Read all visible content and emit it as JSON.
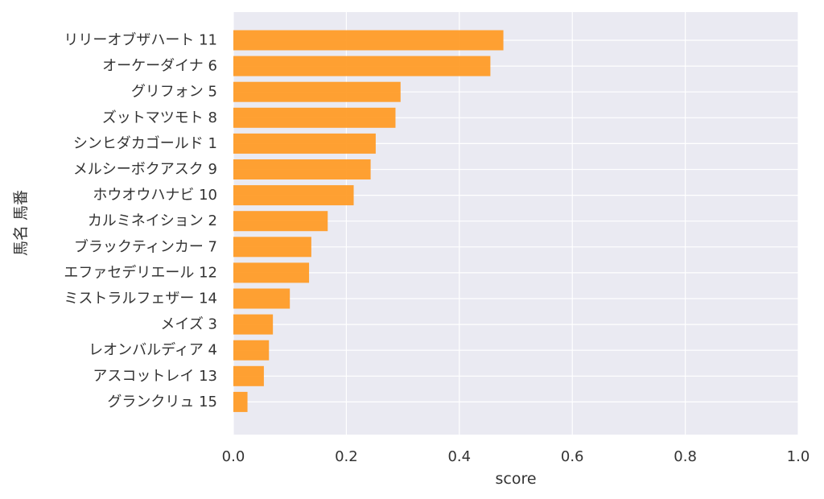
{
  "chart_data": {
    "type": "bar",
    "orientation": "horizontal",
    "categories": [
      "リリーオブザハート 11",
      "オーケーダイナ 6",
      "グリフォン 5",
      "ズットマツモト 8",
      "シンヒダカゴールド 1",
      "メルシーボクアスク 9",
      "ホウオウハナビ 10",
      "カルミネイション 2",
      "ブラックティンカー 7",
      "エファセデリエール 12",
      "ミストラルフェザー 14",
      "メイズ 3",
      "レオンバルディア 4",
      "アスコットレイ 13",
      "グランクリュ 15"
    ],
    "values": [
      0.478,
      0.455,
      0.296,
      0.287,
      0.252,
      0.243,
      0.213,
      0.167,
      0.138,
      0.134,
      0.1,
      0.07,
      0.063,
      0.054,
      0.025
    ],
    "xlabel": "score",
    "ylabel": "馬名 馬番",
    "xlim": [
      0,
      1.0
    ],
    "xticks": [
      "0.0",
      "0.2",
      "0.4",
      "0.6",
      "0.8",
      "1.0"
    ],
    "grid": true,
    "colors": {
      "bar": "#ff9922",
      "background": "#eaeaf2",
      "grid": "#ffffff",
      "text": "#333333"
    }
  }
}
